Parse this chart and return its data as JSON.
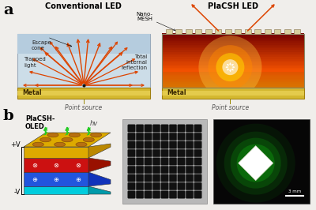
{
  "panel_a_label": "a",
  "panel_b_label": "b",
  "conv_title": "Conventional LED",
  "placsh_title": "PlaCSH LED",
  "bg_color": "#f0eeeb",
  "metal_color_top": "#e8c840",
  "metal_color_bot": "#c8a020",
  "led_body_color": "#d0e0f0",
  "led_top_stripe": "#b8cce0",
  "arrow_color": "#dd4400",
  "escape_cone_label": "Escape\ncone",
  "trapped_label": "Trapped\nlight",
  "total_internal_label": "Total\ninternal\nreflection",
  "nano_mesh_label": "Nano-\nMESH",
  "point_source_label": "Point source",
  "placsh_oled_label": "PlaCSH-\nOLED",
  "hv_label": "hv",
  "plus_v_label": "+V",
  "minus_v_label": "-V",
  "scale_label": "3 mm",
  "metal_label": "Metal"
}
